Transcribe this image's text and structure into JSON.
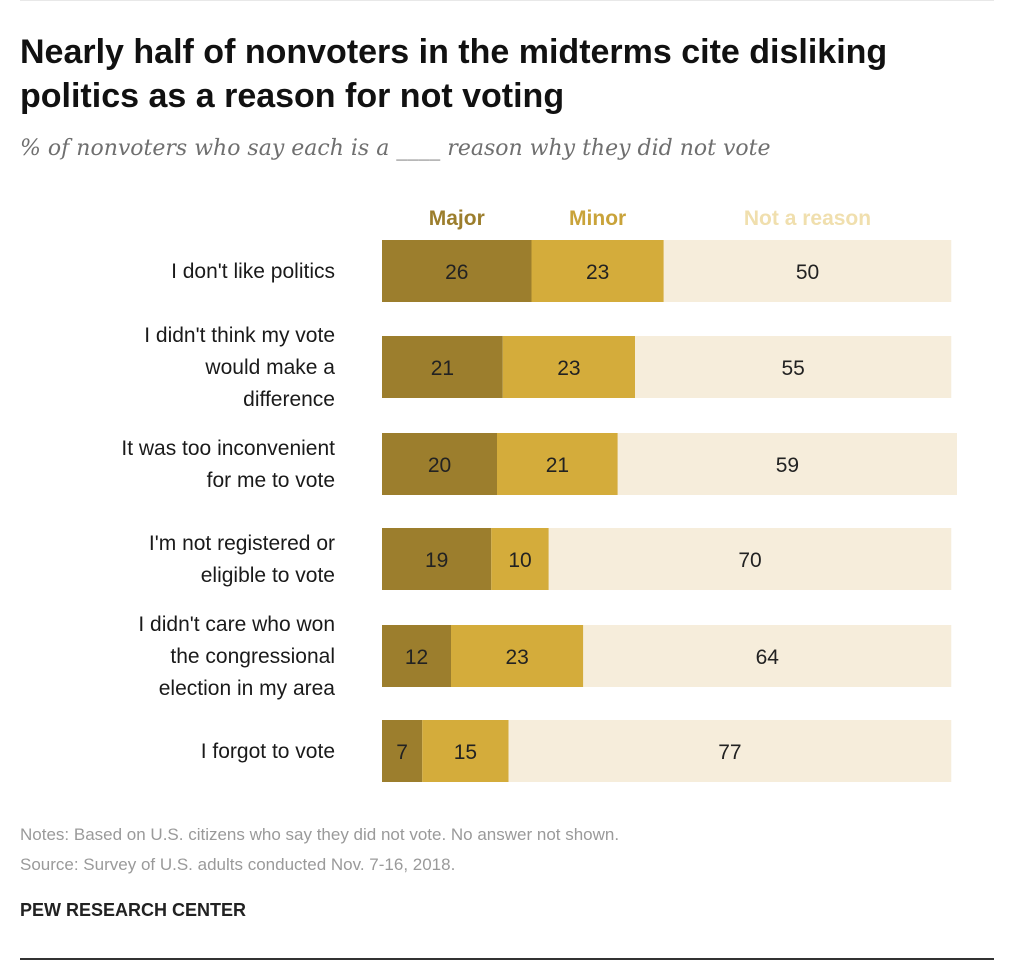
{
  "title": "Nearly half of nonvoters in the midterms cite disliking politics as a reason for not voting",
  "subtitle": "% of nonvoters who say each is a ____ reason why they did not vote",
  "notes": [
    "Notes: Based on U.S. citizens who say they did not vote. No answer not shown.",
    "Source: Survey of U.S. adults conducted Nov. 7-16, 2018."
  ],
  "source_brand": "PEW RESEARCH CENTER",
  "colors": {
    "major": "#9c7e2d",
    "minor": "#d4ac3b",
    "not_a_reason": "#f6eddb",
    "major_label": "#9c7e2d",
    "minor_label": "#c9a33a",
    "not_label": "#f0dfae"
  },
  "chart_data": {
    "type": "bar",
    "orientation": "horizontal",
    "stacked": true,
    "categories": [
      "I don't like politics",
      "I didn't think my vote would make a difference",
      "It was too inconvenient for me to vote",
      "I'm not registered or eligible to vote",
      "I didn't care who won the congressional election in my area",
      "I forgot to vote"
    ],
    "category_lines": [
      [
        "I don't like politics"
      ],
      [
        "I didn't think my vote",
        "would make a",
        "difference"
      ],
      [
        "It was too inconvenient",
        "for me to vote"
      ],
      [
        "I'm not registered or",
        "eligible to vote"
      ],
      [
        "I didn't care who won",
        "the congressional",
        "election in my area"
      ],
      [
        "I forgot to vote"
      ]
    ],
    "series": [
      {
        "name": "Major",
        "values": [
          26,
          21,
          20,
          19,
          12,
          7
        ]
      },
      {
        "name": "Minor",
        "values": [
          23,
          23,
          21,
          10,
          23,
          15
        ]
      },
      {
        "name": "Not a reason",
        "values": [
          50,
          55,
          59,
          70,
          64,
          77
        ]
      }
    ],
    "legend_position": "top",
    "xlim": [
      0,
      100
    ],
    "grid": false
  }
}
